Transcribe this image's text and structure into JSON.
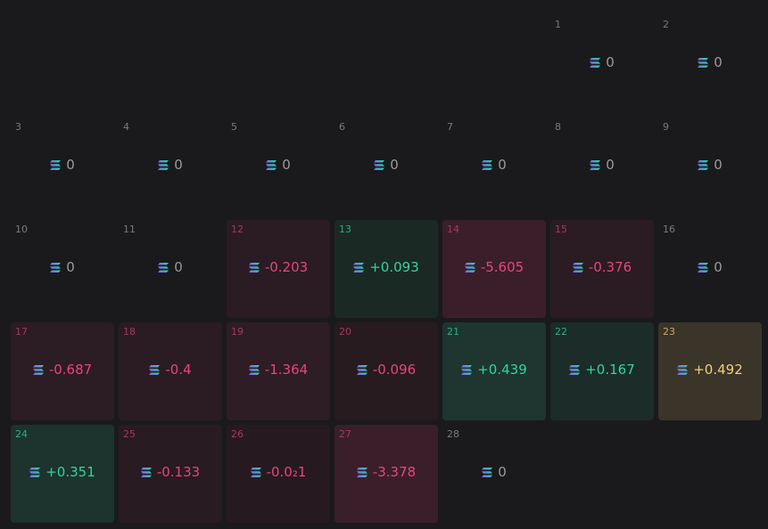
{
  "calendar": {
    "days": [
      {
        "day": "1",
        "value": "0",
        "color": "#9a9a9a",
        "label_color": "#7a7a7a"
      },
      {
        "day": "2",
        "value": "0",
        "color": "#9a9a9a",
        "label_color": "#7a7a7a"
      },
      {
        "day": "3",
        "value": "0",
        "color": "#9a9a9a",
        "label_color": "#7a7a7a"
      },
      {
        "day": "4",
        "value": "0",
        "color": "#9a9a9a",
        "label_color": "#7a7a7a"
      },
      {
        "day": "5",
        "value": "0",
        "color": "#9a9a9a",
        "label_color": "#7a7a7a"
      },
      {
        "day": "6",
        "value": "0",
        "color": "#9a9a9a",
        "label_color": "#7a7a7a"
      },
      {
        "day": "7",
        "value": "0",
        "color": "#9a9a9a",
        "label_color": "#7a7a7a"
      },
      {
        "day": "8",
        "value": "0",
        "color": "#9a9a9a",
        "label_color": "#7a7a7a"
      },
      {
        "day": "9",
        "value": "0",
        "color": "#9a9a9a",
        "label_color": "#7a7a7a"
      },
      {
        "day": "10",
        "value": "0",
        "color": "#9a9a9a",
        "label_color": "#7a7a7a"
      },
      {
        "day": "11",
        "value": "0",
        "color": "#9a9a9a",
        "label_color": "#7a7a7a"
      },
      {
        "day": "12",
        "value": "-0.203",
        "color": "#e8457a",
        "label_color": "#a8385c",
        "background": "#2a1c22"
      },
      {
        "day": "13",
        "value": "+0.093",
        "color": "#2fd69a",
        "label_color": "#2fae7f",
        "background": "#1b2925"
      },
      {
        "day": "14",
        "value": "-5.605",
        "color": "#e8457a",
        "label_color": "#a8385c",
        "background": "#3a1f2a"
      },
      {
        "day": "15",
        "value": "-0.376",
        "color": "#e8457a",
        "label_color": "#a8385c",
        "background": "#2a1c22"
      },
      {
        "day": "16",
        "value": "0",
        "color": "#9a9a9a",
        "label_color": "#7a7a7a"
      },
      {
        "day": "17",
        "value": "-0.687",
        "color": "#e8457a",
        "label_color": "#a8385c",
        "background": "#2c1c23"
      },
      {
        "day": "18",
        "value": "-0.4",
        "color": "#e8457a",
        "label_color": "#a8385c",
        "background": "#2a1c22"
      },
      {
        "day": "19",
        "value": "-1.364",
        "color": "#e8457a",
        "label_color": "#a8385c",
        "background": "#2e1d25"
      },
      {
        "day": "20",
        "value": "-0.096",
        "color": "#e8457a",
        "label_color": "#a8385c",
        "background": "#271b20"
      },
      {
        "day": "21",
        "value": "+0.439",
        "color": "#2fd69a",
        "label_color": "#2fae7f",
        "background": "#1e3530"
      },
      {
        "day": "22",
        "value": "+0.167",
        "color": "#2fd69a",
        "label_color": "#2fae7f",
        "background": "#1c2c28"
      },
      {
        "day": "23",
        "value": "+0.492",
        "color": "#f0d07a",
        "label_color": "#c9a660",
        "background": "#3a3429"
      },
      {
        "day": "24",
        "value": "+0.351",
        "color": "#2fd69a",
        "label_color": "#2fae7f",
        "background": "#1d332d"
      },
      {
        "day": "25",
        "value": "-0.133",
        "color": "#e8457a",
        "label_color": "#a8385c",
        "background": "#281b21"
      },
      {
        "day": "26",
        "value": "-0.0₂1",
        "color": "#e8457a",
        "label_color": "#a8385c",
        "background": "#261a20"
      },
      {
        "day": "27",
        "value": "-3.378",
        "color": "#e8457a",
        "label_color": "#a8385c",
        "background": "#3a1f2a"
      },
      {
        "day": "28",
        "value": "0",
        "color": "#9a9a9a",
        "label_color": "#7a7a7a"
      }
    ]
  }
}
